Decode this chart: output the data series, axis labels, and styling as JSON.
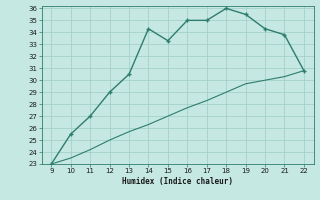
{
  "xlabel": "Humidex (Indice chaleur)",
  "x": [
    9,
    10,
    11,
    12,
    13,
    14,
    15,
    16,
    17,
    18,
    19,
    20,
    21,
    22
  ],
  "y_curve": [
    23.0,
    25.5,
    27.0,
    29.0,
    30.5,
    34.3,
    33.3,
    35.0,
    35.0,
    36.0,
    35.5,
    34.3,
    33.8,
    30.8
  ],
  "y_line": [
    23.0,
    23.5,
    24.2,
    25.0,
    25.7,
    26.3,
    27.0,
    27.7,
    28.3,
    29.0,
    29.7,
    30.0,
    30.3,
    30.8
  ],
  "xlim": [
    8.5,
    22.5
  ],
  "ylim": [
    23,
    36
  ],
  "xticks": [
    9,
    10,
    11,
    12,
    13,
    14,
    15,
    16,
    17,
    18,
    19,
    20,
    21,
    22
  ],
  "yticks": [
    23,
    24,
    25,
    26,
    27,
    28,
    29,
    30,
    31,
    32,
    33,
    34,
    35,
    36
  ],
  "line_color": "#2e7d6e",
  "bg_color": "#c5e8e2",
  "grid_color": "#9ecdc5",
  "fig_bg": "#c5e8e2"
}
